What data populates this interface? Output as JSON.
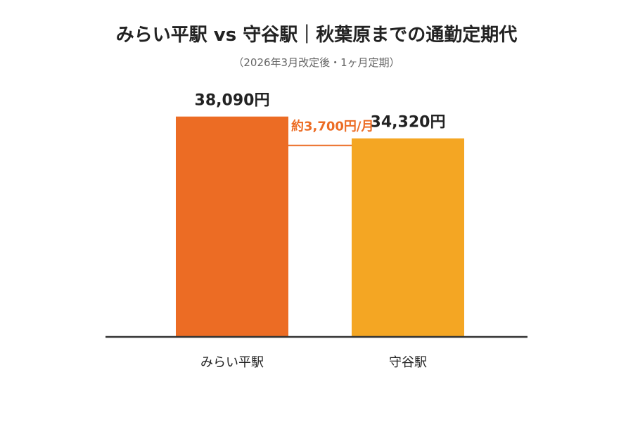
{
  "chart_data": {
    "type": "bar",
    "title": "みらい平駅 vs 守谷駅｜秋葉原までの通勤定期代",
    "subtitle": "（2026年3月改定後・1ヶ月定期）",
    "categories": [
      "みらい平駅",
      "守谷駅"
    ],
    "values": [
      38090,
      34320
    ],
    "value_labels": [
      "38,090円",
      "34,320円"
    ],
    "colors": [
      "#EC6C24",
      "#F4A623"
    ],
    "ylim": [
      0,
      40000
    ],
    "grid": false,
    "legend": "none",
    "annotation": {
      "text": "約3,700円/月",
      "color": "#EC6C24"
    }
  }
}
